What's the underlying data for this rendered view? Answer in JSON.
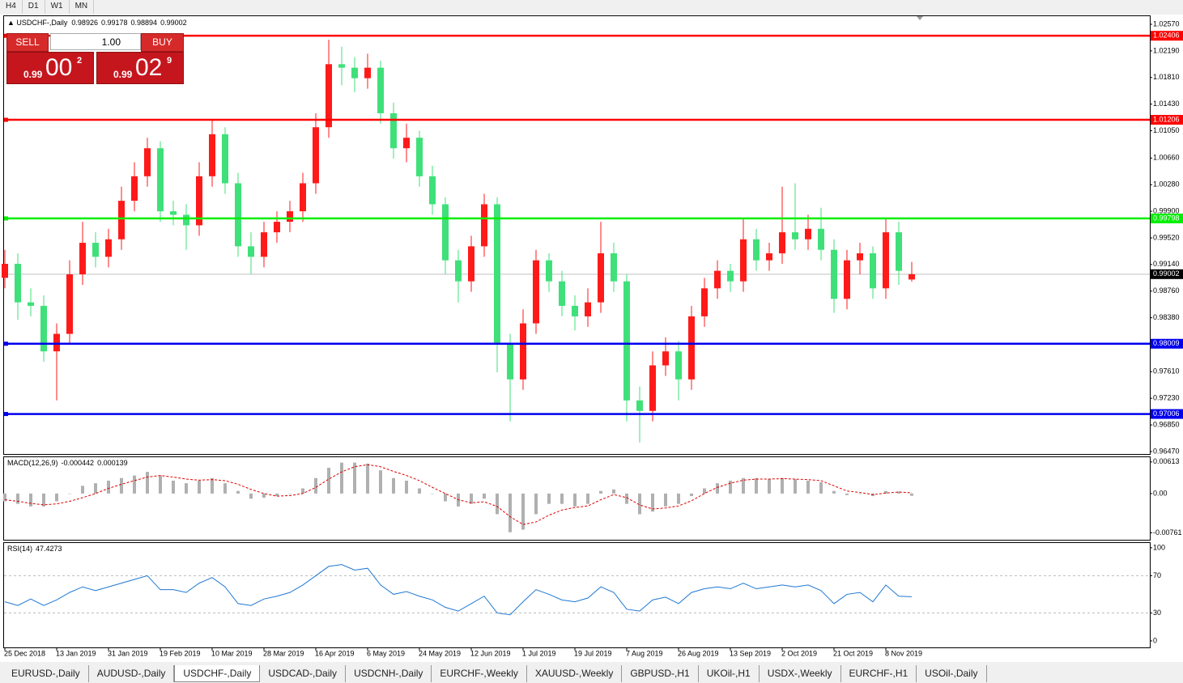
{
  "toolbar": {
    "timeframes": [
      "H4",
      "D1",
      "W1",
      "MN"
    ]
  },
  "trade_panel": {
    "sell_label": "SELL",
    "buy_label": "BUY",
    "lot": "1.00",
    "sell_price": {
      "big": "0.99",
      "pips": "00",
      "point": "2"
    },
    "buy_price": {
      "big": "0.99",
      "pips": "02",
      "point": "9"
    }
  },
  "chart_data": {
    "type": "candlestick",
    "title": "USDCHF-,Daily",
    "up_color": "#ff1a1a",
    "down_color": "#3fe07a",
    "categories": [
      "25 Dec 2018",
      null,
      null,
      null,
      "13 Jan 2019",
      null,
      null,
      null,
      "31 Jan 2019",
      null,
      null,
      null,
      "19 Feb 2019",
      null,
      null,
      null,
      "10 Mar 2019",
      null,
      null,
      null,
      "28 Mar 2019",
      null,
      null,
      null,
      "16 Apr 2019",
      null,
      null,
      null,
      "6 May 2019",
      null,
      null,
      null,
      "24 May 2019",
      null,
      null,
      null,
      "12 Jun 2019",
      null,
      null,
      null,
      "1 Jul 2019",
      null,
      null,
      null,
      "19 Jul 2019",
      null,
      null,
      null,
      "7 Aug 2019",
      null,
      null,
      null,
      "26 Aug 2019",
      null,
      null,
      null,
      "13 Sep 2019",
      null,
      null,
      null,
      "2 Oct 2019",
      null,
      null,
      null,
      "21 Oct 2019",
      null,
      null,
      null,
      "8 Nov 2019",
      null,
      null
    ],
    "candles": {
      "open": [
        0.9895,
        0.9915,
        0.986,
        0.9855,
        0.979,
        0.9815,
        0.99,
        0.9945,
        0.9925,
        0.995,
        1.0005,
        1.004,
        1.008,
        0.999,
        0.9985,
        0.997,
        1.004,
        1.01,
        1.003,
        0.994,
        0.9925,
        0.996,
        0.9975,
        0.999,
        1.003,
        1.011,
        1.02,
        1.0195,
        1.018,
        1.0195,
        1.013,
        1.008,
        1.0095,
        1.004,
        1.0,
        0.992,
        0.989,
        0.994,
        1.0,
        0.98,
        0.975,
        0.983,
        0.992,
        0.989,
        0.9855,
        0.984,
        0.986,
        0.993,
        0.989,
        0.972,
        0.9705,
        0.977,
        0.979,
        0.975,
        0.984,
        0.988,
        0.9905,
        0.989,
        0.995,
        0.992,
        0.993,
        0.996,
        0.995,
        0.9965,
        0.9935,
        0.9865,
        0.992,
        0.993,
        0.988,
        0.996,
        0.98926
      ],
      "high": [
        0.9935,
        0.993,
        0.988,
        0.987,
        0.983,
        0.992,
        0.9975,
        0.996,
        0.9965,
        1.0025,
        1.006,
        1.0095,
        1.009,
        1.0005,
        1.0,
        1.006,
        1.012,
        1.011,
        1.0045,
        0.996,
        0.9975,
        0.999,
        1.0005,
        1.0045,
        1.013,
        1.0235,
        1.0225,
        1.021,
        1.0215,
        1.0205,
        1.0145,
        1.0115,
        1.0105,
        1.0055,
        1.001,
        0.9935,
        0.9955,
        1.0015,
        1.001,
        0.9815,
        0.985,
        0.9935,
        0.993,
        0.9905,
        0.987,
        0.988,
        0.9975,
        0.9945,
        0.99,
        0.974,
        0.979,
        0.981,
        0.9805,
        0.9855,
        0.9895,
        0.992,
        0.9915,
        0.998,
        0.9965,
        0.9945,
        1.0025,
        1.003,
        0.9985,
        0.9995,
        0.995,
        0.9935,
        0.9945,
        0.994,
        0.998,
        0.9975,
        0.99178
      ],
      "low": [
        0.988,
        0.9835,
        0.984,
        0.9775,
        0.972,
        0.98,
        0.9885,
        0.991,
        0.991,
        0.9935,
        0.999,
        1.0025,
        0.9975,
        0.997,
        0.9935,
        0.9955,
        1.0025,
        1.0015,
        0.9925,
        0.99,
        0.991,
        0.9945,
        0.996,
        0.9975,
        1.0015,
        1.0095,
        1.017,
        1.016,
        1.0165,
        1.0115,
        1.0065,
        1.006,
        1.0025,
        0.9985,
        0.99,
        0.986,
        0.9875,
        0.9925,
        0.976,
        0.969,
        0.9735,
        0.9815,
        0.9875,
        0.984,
        0.982,
        0.9825,
        0.9845,
        0.9875,
        0.969,
        0.966,
        0.969,
        0.9755,
        0.972,
        0.9735,
        0.9825,
        0.9865,
        0.9875,
        0.9875,
        0.9905,
        0.9905,
        0.9915,
        0.9935,
        0.9935,
        0.992,
        0.9845,
        0.985,
        0.99,
        0.9865,
        0.9865,
        0.9885,
        0.98894
      ],
      "close": [
        0.9915,
        0.986,
        0.9855,
        0.979,
        0.9815,
        0.99,
        0.9945,
        0.9925,
        0.995,
        1.0005,
        1.004,
        1.008,
        0.999,
        0.9985,
        0.997,
        1.004,
        1.01,
        1.003,
        0.994,
        0.9925,
        0.996,
        0.9975,
        0.999,
        1.003,
        1.011,
        1.02,
        1.0195,
        1.018,
        1.0195,
        1.013,
        1.008,
        1.0095,
        1.004,
        1.0,
        0.992,
        0.989,
        0.994,
        1.0,
        0.98,
        0.975,
        0.983,
        0.992,
        0.989,
        0.9855,
        0.984,
        0.986,
        0.993,
        0.989,
        0.972,
        0.9705,
        0.977,
        0.979,
        0.975,
        0.984,
        0.988,
        0.9905,
        0.989,
        0.995,
        0.992,
        0.993,
        0.996,
        0.995,
        0.9965,
        0.9935,
        0.9865,
        0.992,
        0.993,
        0.988,
        0.996,
        0.9905,
        0.99002
      ]
    },
    "ylim": [
      0.96435,
      1.02697
    ],
    "yticks": [
      {
        "value": 1.0257,
        "label": "1.02570"
      },
      {
        "value": 1.0219,
        "label": "1.02190"
      },
      {
        "value": 1.0181,
        "label": "1.01810"
      },
      {
        "value": 1.0143,
        "label": "1.01430"
      },
      {
        "value": 1.0105,
        "label": "1.01050"
      },
      {
        "value": 1.0066,
        "label": "1.00660"
      },
      {
        "value": 1.0028,
        "label": "1.00280"
      },
      {
        "value": 0.999,
        "label": "0.99900"
      },
      {
        "value": 0.9952,
        "label": "0.99520"
      },
      {
        "value": 0.9914,
        "label": "0.99140"
      },
      {
        "value": 0.9876,
        "label": "0.98760"
      },
      {
        "value": 0.9838,
        "label": "0.98380"
      },
      {
        "value": 0.9761,
        "label": "0.97610"
      },
      {
        "value": 0.9723,
        "label": "0.97230"
      },
      {
        "value": 0.9685,
        "label": "0.96850"
      },
      {
        "value": 0.9647,
        "label": "0.96470"
      }
    ],
    "levels": [
      {
        "value": 1.02406,
        "color": "#ff0000"
      },
      {
        "value": 1.01206,
        "color": "#ff0000"
      },
      {
        "value": 0.99798,
        "color": "#00ee00"
      },
      {
        "value": 0.98009,
        "color": "#0000ee"
      },
      {
        "value": 0.97006,
        "color": "#0000ee"
      }
    ],
    "macd": {
      "title": "MACD(12,26,9)",
      "hist_color": "#b0b0b0",
      "signal_color": "#e00000",
      "values": [
        -0.0015,
        -0.002,
        -0.0025,
        -0.0025,
        -0.0015,
        0.0,
        0.0015,
        0.002,
        0.0025,
        0.003,
        0.0035,
        0.0042,
        0.0035,
        0.0025,
        0.002,
        0.0025,
        0.003,
        0.002,
        0.0005,
        -0.001,
        -0.0008,
        -0.0005,
        0.0,
        0.001,
        0.003,
        0.005,
        0.006,
        0.006,
        0.0058,
        0.0045,
        0.003,
        0.0025,
        0.001,
        0.0,
        -0.0015,
        -0.0025,
        -0.002,
        -0.001,
        -0.004,
        -0.0075,
        -0.007,
        -0.004,
        -0.002,
        -0.002,
        -0.0025,
        -0.002,
        0.0005,
        0.0008,
        -0.002,
        -0.004,
        -0.0035,
        -0.0025,
        -0.002,
        -0.0005,
        0.001,
        0.002,
        0.0025,
        0.003,
        0.003,
        0.0028,
        0.003,
        0.0028,
        0.0025,
        0.0022,
        0.0005,
        -0.0003,
        0.0,
        -0.0005,
        0.0005,
        0.0004,
        -0.000442
      ],
      "signal": [
        -0.0012,
        -0.0015,
        -0.0019,
        -0.0022,
        -0.002,
        -0.0015,
        -0.0008,
        0.0,
        0.001,
        0.0018,
        0.0025,
        0.0032,
        0.0035,
        0.0032,
        0.0028,
        0.0026,
        0.0027,
        0.0025,
        0.0018,
        0.0008,
        0.0,
        -0.0005,
        -0.0004,
        0.0,
        0.0012,
        0.0028,
        0.0042,
        0.0052,
        0.0056,
        0.0052,
        0.0043,
        0.0035,
        0.0025,
        0.0012,
        0.0,
        -0.0012,
        -0.0018,
        -0.0016,
        -0.0025,
        -0.0045,
        -0.006,
        -0.0055,
        -0.0042,
        -0.0032,
        -0.0027,
        -0.0024,
        -0.0012,
        -0.0002,
        -0.0008,
        -0.0022,
        -0.003,
        -0.0028,
        -0.0024,
        -0.0014,
        0.0,
        0.0012,
        0.002,
        0.0026,
        0.0028,
        0.0028,
        0.0029,
        0.0028,
        0.0027,
        0.0025,
        0.0015,
        0.0005,
        0.0002,
        -0.0002,
        0.0001,
        0.0003,
        0.000139
      ],
      "ylim": [
        -0.00896,
        0.0072
      ],
      "yticks": [
        0.00613,
        {
          "value": 0,
          "label": "0.00"
        },
        -0.00761
      ]
    },
    "rsi": {
      "title": "RSI(14)",
      "color": "#1e78d2",
      "values": [
        42,
        38,
        45,
        38,
        44,
        52,
        58,
        54,
        58,
        62,
        66,
        70,
        55,
        55,
        52,
        62,
        68,
        58,
        40,
        38,
        45,
        48,
        52,
        60,
        70,
        80,
        82,
        76,
        78,
        60,
        50,
        53,
        48,
        44,
        36,
        32,
        40,
        48,
        30,
        28,
        42,
        55,
        50,
        44,
        42,
        46,
        58,
        52,
        34,
        32,
        44,
        47,
        40,
        52,
        56,
        58,
        56,
        62,
        56,
        58,
        60,
        58,
        60,
        54,
        40,
        50,
        52,
        42,
        60,
        48,
        47.4273
      ],
      "ylim": [
        -7,
        106
      ],
      "yticks": [
        100,
        70,
        30,
        0
      ]
    }
  },
  "tabs": {
    "items": [
      "EURUSD-,Daily",
      "AUDUSD-,Daily",
      "USDCHF-,Daily",
      "USDCAD-,Daily",
      "USDCNH-,Daily",
      "EURCHF-,Weekly",
      "XAUUSD-,Weekly",
      "GBPUSD-,H1",
      "UKOil-,H1",
      "USDX-,Weekly",
      "EURCHF-,H1",
      "USOil-,Daily"
    ],
    "active": 2
  }
}
